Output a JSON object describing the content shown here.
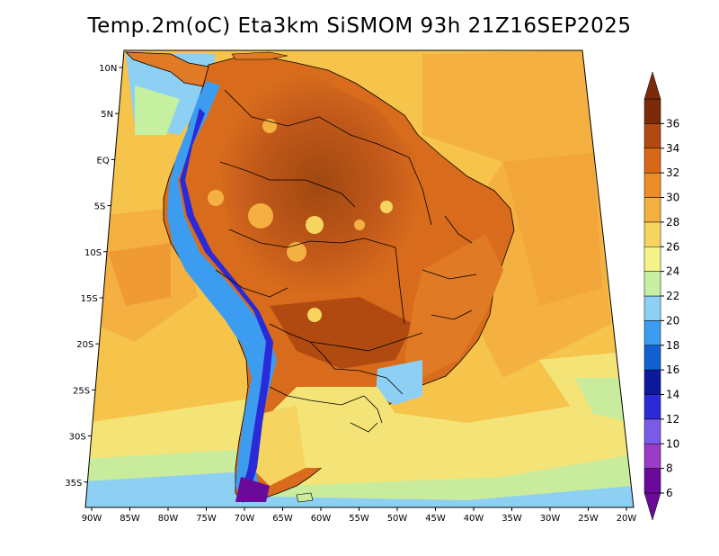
{
  "title": "Temp.2m(oC) Eta3km SiSMOM 93h 21Z16SEP2025",
  "map": {
    "variable": "2 m air temperature",
    "unit": "oC",
    "lat_labels": [
      "10N",
      "5N",
      "EQ",
      "5S",
      "10S",
      "15S",
      "20S",
      "25S",
      "30S",
      "35S"
    ],
    "lon_labels": [
      "90W",
      "85W",
      "80W",
      "75W",
      "70W",
      "65W",
      "60W",
      "55W",
      "50W",
      "45W",
      "40W",
      "35W",
      "30W",
      "25W",
      "20W"
    ]
  },
  "colorbar": {
    "labels": [
      "6",
      "8",
      "10",
      "12",
      "14",
      "16",
      "18",
      "20",
      "22",
      "24",
      "26",
      "28",
      "30",
      "32",
      "34",
      "36"
    ],
    "colors": [
      "#6a0a9a",
      "#9b3cc6",
      "#7a5be8",
      "#2a2ad8",
      "#0a1a9a",
      "#1060d0",
      "#3c9cf0",
      "#8ed0f4",
      "#c4f0a0",
      "#f4f48a",
      "#f6d460",
      "#f4b040",
      "#ee8c28",
      "#d86818",
      "#b04a10",
      "#7c2a08"
    ]
  }
}
